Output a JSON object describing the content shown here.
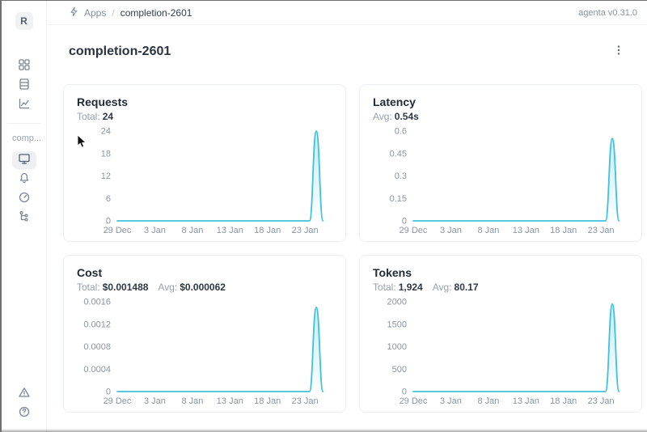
{
  "header": {
    "breadcrumb": {
      "app_section": "Apps",
      "separator": "/",
      "current": "completion-2601"
    },
    "version": "agenta v0.31.0"
  },
  "sidebar": {
    "logo_letter": "R",
    "workspace_label": "comp..."
  },
  "page": {
    "title": "completion-2601"
  },
  "cards": [
    {
      "title": "Requests",
      "stats": [
        {
          "label": "Total:",
          "value": "24"
        }
      ]
    },
    {
      "title": "Latency",
      "stats": [
        {
          "label": "Avg:",
          "value": "0.54s"
        }
      ]
    },
    {
      "title": "Cost",
      "stats": [
        {
          "label": "Total:",
          "value": "$0.001488"
        },
        {
          "label": "Avg:",
          "value": "$0.000062"
        }
      ]
    },
    {
      "title": "Tokens",
      "stats": [
        {
          "label": "Total:",
          "value": "1,924"
        },
        {
          "label": "Avg:",
          "value": "80.17"
        }
      ]
    }
  ],
  "chart_data": [
    {
      "type": "area",
      "title": "Requests",
      "x_domain": [
        0,
        28
      ],
      "ylim": [
        0,
        24
      ],
      "y_ticks": [
        [
          0,
          "0"
        ],
        [
          6,
          "6"
        ],
        [
          12,
          "12"
        ],
        [
          18,
          "18"
        ],
        [
          24,
          "24"
        ]
      ],
      "x_ticks": [
        [
          0,
          "29 Dec"
        ],
        [
          5,
          "3 Jan"
        ],
        [
          10,
          "8 Jan"
        ],
        [
          15,
          "13 Jan"
        ],
        [
          20,
          "18 Jan"
        ],
        [
          25,
          "23 Jan"
        ]
      ],
      "series": [
        {
          "name": "requests",
          "points": [
            [
              0,
              0
            ],
            [
              5,
              0
            ],
            [
              10,
              0
            ],
            [
              15,
              0
            ],
            [
              20,
              0
            ],
            [
              24,
              0
            ],
            [
              25.6,
              0
            ],
            [
              26.5,
              24
            ],
            [
              27.4,
              0
            ]
          ]
        }
      ]
    },
    {
      "type": "area",
      "title": "Latency",
      "x_domain": [
        0,
        28
      ],
      "ylim": [
        0,
        0.6
      ],
      "y_ticks": [
        [
          0,
          "0"
        ],
        [
          0.15,
          "0.15"
        ],
        [
          0.3,
          "0.3"
        ],
        [
          0.45,
          "0.45"
        ],
        [
          0.6,
          "0.6"
        ]
      ],
      "x_ticks": [
        [
          0,
          "29 Dec"
        ],
        [
          5,
          "3 Jan"
        ],
        [
          10,
          "8 Jan"
        ],
        [
          15,
          "13 Jan"
        ],
        [
          20,
          "18 Jan"
        ],
        [
          25,
          "23 Jan"
        ]
      ],
      "series": [
        {
          "name": "latency_s",
          "points": [
            [
              0,
              0
            ],
            [
              5,
              0
            ],
            [
              10,
              0
            ],
            [
              15,
              0
            ],
            [
              20,
              0
            ],
            [
              24,
              0
            ],
            [
              25.6,
              0
            ],
            [
              26.5,
              0.55
            ],
            [
              27.4,
              0
            ]
          ]
        }
      ]
    },
    {
      "type": "area",
      "title": "Cost",
      "x_domain": [
        0,
        28
      ],
      "ylim": [
        0,
        0.0016
      ],
      "y_ticks": [
        [
          0,
          "0"
        ],
        [
          0.0004,
          "0.0004"
        ],
        [
          0.0008,
          "0.0008"
        ],
        [
          0.0012,
          "0.0012"
        ],
        [
          0.0016,
          "0.0016"
        ]
      ],
      "x_ticks": [
        [
          0,
          "29 Dec"
        ],
        [
          5,
          "3 Jan"
        ],
        [
          10,
          "8 Jan"
        ],
        [
          15,
          "13 Jan"
        ],
        [
          20,
          "18 Jan"
        ],
        [
          25,
          "23 Jan"
        ]
      ],
      "series": [
        {
          "name": "cost_usd",
          "points": [
            [
              0,
              0
            ],
            [
              5,
              0
            ],
            [
              10,
              0
            ],
            [
              15,
              0
            ],
            [
              20,
              0
            ],
            [
              24,
              0
            ],
            [
              25.6,
              0
            ],
            [
              26.5,
              0.0015
            ],
            [
              27.4,
              0
            ]
          ]
        }
      ]
    },
    {
      "type": "area",
      "title": "Tokens",
      "x_domain": [
        0,
        28
      ],
      "ylim": [
        0,
        2000
      ],
      "y_ticks": [
        [
          0,
          "0"
        ],
        [
          500,
          "500"
        ],
        [
          1000,
          "1000"
        ],
        [
          1500,
          "1500"
        ],
        [
          2000,
          "2000"
        ]
      ],
      "x_ticks": [
        [
          0,
          "29 Dec"
        ],
        [
          5,
          "3 Jan"
        ],
        [
          10,
          "8 Jan"
        ],
        [
          15,
          "13 Jan"
        ],
        [
          20,
          "18 Jan"
        ],
        [
          25,
          "23 Jan"
        ]
      ],
      "series": [
        {
          "name": "tokens",
          "points": [
            [
              0,
              0
            ],
            [
              5,
              0
            ],
            [
              10,
              0
            ],
            [
              15,
              0
            ],
            [
              20,
              0
            ],
            [
              24,
              0
            ],
            [
              25.6,
              0
            ],
            [
              26.5,
              1950
            ],
            [
              27.4,
              0
            ]
          ]
        }
      ]
    }
  ],
  "colors": {
    "line": "#3EC1DC",
    "axis_text": "#8b95a1",
    "fill_top_opacity": "0.30"
  }
}
